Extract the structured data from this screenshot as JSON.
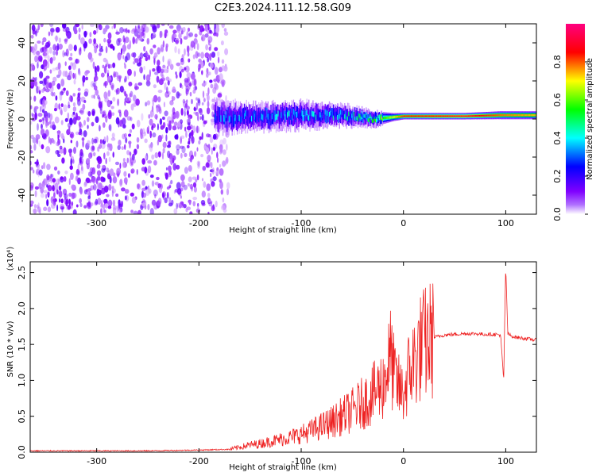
{
  "title": "C2E3.2024.111.12.58.G09",
  "colorbar": {
    "label": "Normalized spectral amplitude",
    "ticks": [
      "0.0",
      "0.2",
      "0.4",
      "0.6",
      "0.8"
    ],
    "range": [
      0,
      1
    ],
    "colormap": [
      "#ffffff",
      "#8000ff",
      "#0000ff",
      "#00ffff",
      "#00ff00",
      "#ffff00",
      "#ff0000",
      "#ff0080"
    ]
  },
  "chart_data": [
    {
      "type": "heatmap",
      "xlabel": "Height of straight line (km)",
      "ylabel": "Frequency (Hz)",
      "xlim": [
        -365,
        130
      ],
      "ylim": [
        -50,
        50
      ],
      "xticks": [
        -300,
        -200,
        -100,
        0,
        100
      ],
      "xtick_labels": [
        "-300",
        "-200",
        "-100",
        "0",
        "100"
      ],
      "yticks": [
        -40,
        -20,
        0,
        20,
        40
      ],
      "ytick_labels": [
        "-40",
        "-20",
        "0",
        "20",
        "40"
      ],
      "features": {
        "noise_region": {
          "x_range": [
            -365,
            -185
          ],
          "y_range": [
            -50,
            50
          ],
          "amplitude": 0.1
        },
        "signal_band": [
          {
            "x": -185,
            "center": 1,
            "halfwidth": 6,
            "amplitude": 0.3
          },
          {
            "x": -150,
            "center": 1,
            "halfwidth": 5,
            "amplitude": 0.32
          },
          {
            "x": -100,
            "center": 2,
            "halfwidth": 5,
            "amplitude": 0.34
          },
          {
            "x": -60,
            "center": 2,
            "halfwidth": 4,
            "amplitude": 0.36
          },
          {
            "x": -30,
            "center": 0,
            "halfwidth": 3,
            "amplitude": 0.45
          },
          {
            "x": -10,
            "center": 1,
            "halfwidth": 1.5,
            "amplitude": 0.7
          },
          {
            "x": 0,
            "center": 1.5,
            "halfwidth": 1.2,
            "amplitude": 0.85
          },
          {
            "x": 60,
            "center": 1.5,
            "halfwidth": 1.2,
            "amplitude": 0.9
          },
          {
            "x": 95,
            "center": 2,
            "halfwidth": 1.5,
            "amplitude": 0.8
          },
          {
            "x": 130,
            "center": 2,
            "halfwidth": 1.5,
            "amplitude": 0.75
          }
        ]
      }
    },
    {
      "type": "line",
      "xlabel": "Height of straight line (km)",
      "ylabel": "SNR (10 * v/v)",
      "y_multiplier_label": "(x10⁴)",
      "xlim": [
        -365,
        130
      ],
      "ylim": [
        0,
        2.65
      ],
      "xticks": [
        -300,
        -200,
        -100,
        0,
        100
      ],
      "xtick_labels": [
        "-300",
        "-200",
        "-100",
        "0",
        "100"
      ],
      "yticks": [
        0,
        0.5,
        1.0,
        1.5,
        2.0,
        2.5
      ],
      "ytick_labels": [
        "0.0",
        "0.5",
        "1.0",
        "1.5",
        "2.0",
        "2.5"
      ],
      "series": [
        {
          "color": "#ee2222",
          "x": [
            -365,
            -300,
            -250,
            -200,
            -170,
            -160,
            -150,
            -140,
            -130,
            -120,
            -110,
            -100,
            -90,
            -80,
            -70,
            -60,
            -50,
            -40,
            -30,
            -20,
            -15,
            -12,
            -10,
            -5,
            0,
            5,
            10,
            15,
            20,
            25,
            30,
            40,
            50,
            60,
            70,
            80,
            90,
            95,
            98,
            100,
            102,
            105,
            110,
            120,
            130
          ],
          "y": [
            0.02,
            0.02,
            0.02,
            0.03,
            0.04,
            0.07,
            0.1,
            0.12,
            0.15,
            0.18,
            0.21,
            0.25,
            0.3,
            0.36,
            0.42,
            0.5,
            0.58,
            0.68,
            0.8,
            0.95,
            1.2,
            1.35,
            1.1,
            0.9,
            0.8,
            1.1,
            1.25,
            1.42,
            1.5,
            1.55,
            1.6,
            1.63,
            1.64,
            1.65,
            1.65,
            1.64,
            1.64,
            1.63,
            1.0,
            2.6,
            1.65,
            1.62,
            1.6,
            1.58,
            1.56
          ]
        }
      ]
    }
  ]
}
